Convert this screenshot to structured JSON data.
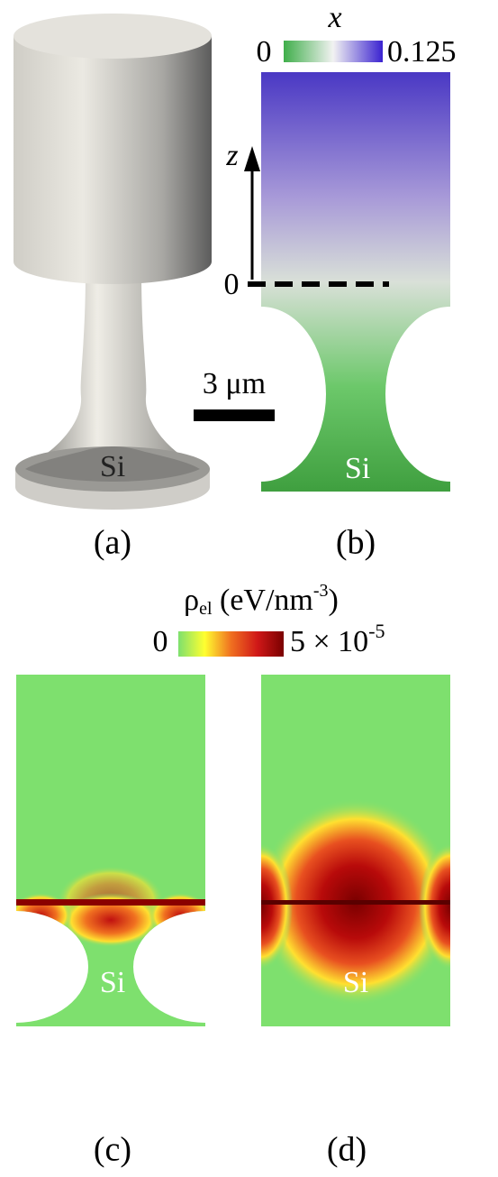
{
  "panels": [
    {
      "label": "(a)",
      "material": "Si"
    },
    {
      "label": "(b)",
      "material": "Si"
    },
    {
      "label": "(c)",
      "material": "Si"
    },
    {
      "label": "(d)",
      "material": "Si"
    }
  ],
  "composition_colorbar": {
    "title": "x",
    "min_label": "0",
    "max_label": "0.125"
  },
  "z_axis": {
    "label": "z",
    "origin_label": "0"
  },
  "scale_bar": "3 μm",
  "density_colorbar": {
    "symbol": "ρ",
    "subscript": "el",
    "unit": " (eV/nm",
    "unit_exponent": "-3",
    "unit_close": ")",
    "min_label": "0",
    "max_label": "5 × 10",
    "max_exponent": "-5"
  }
}
